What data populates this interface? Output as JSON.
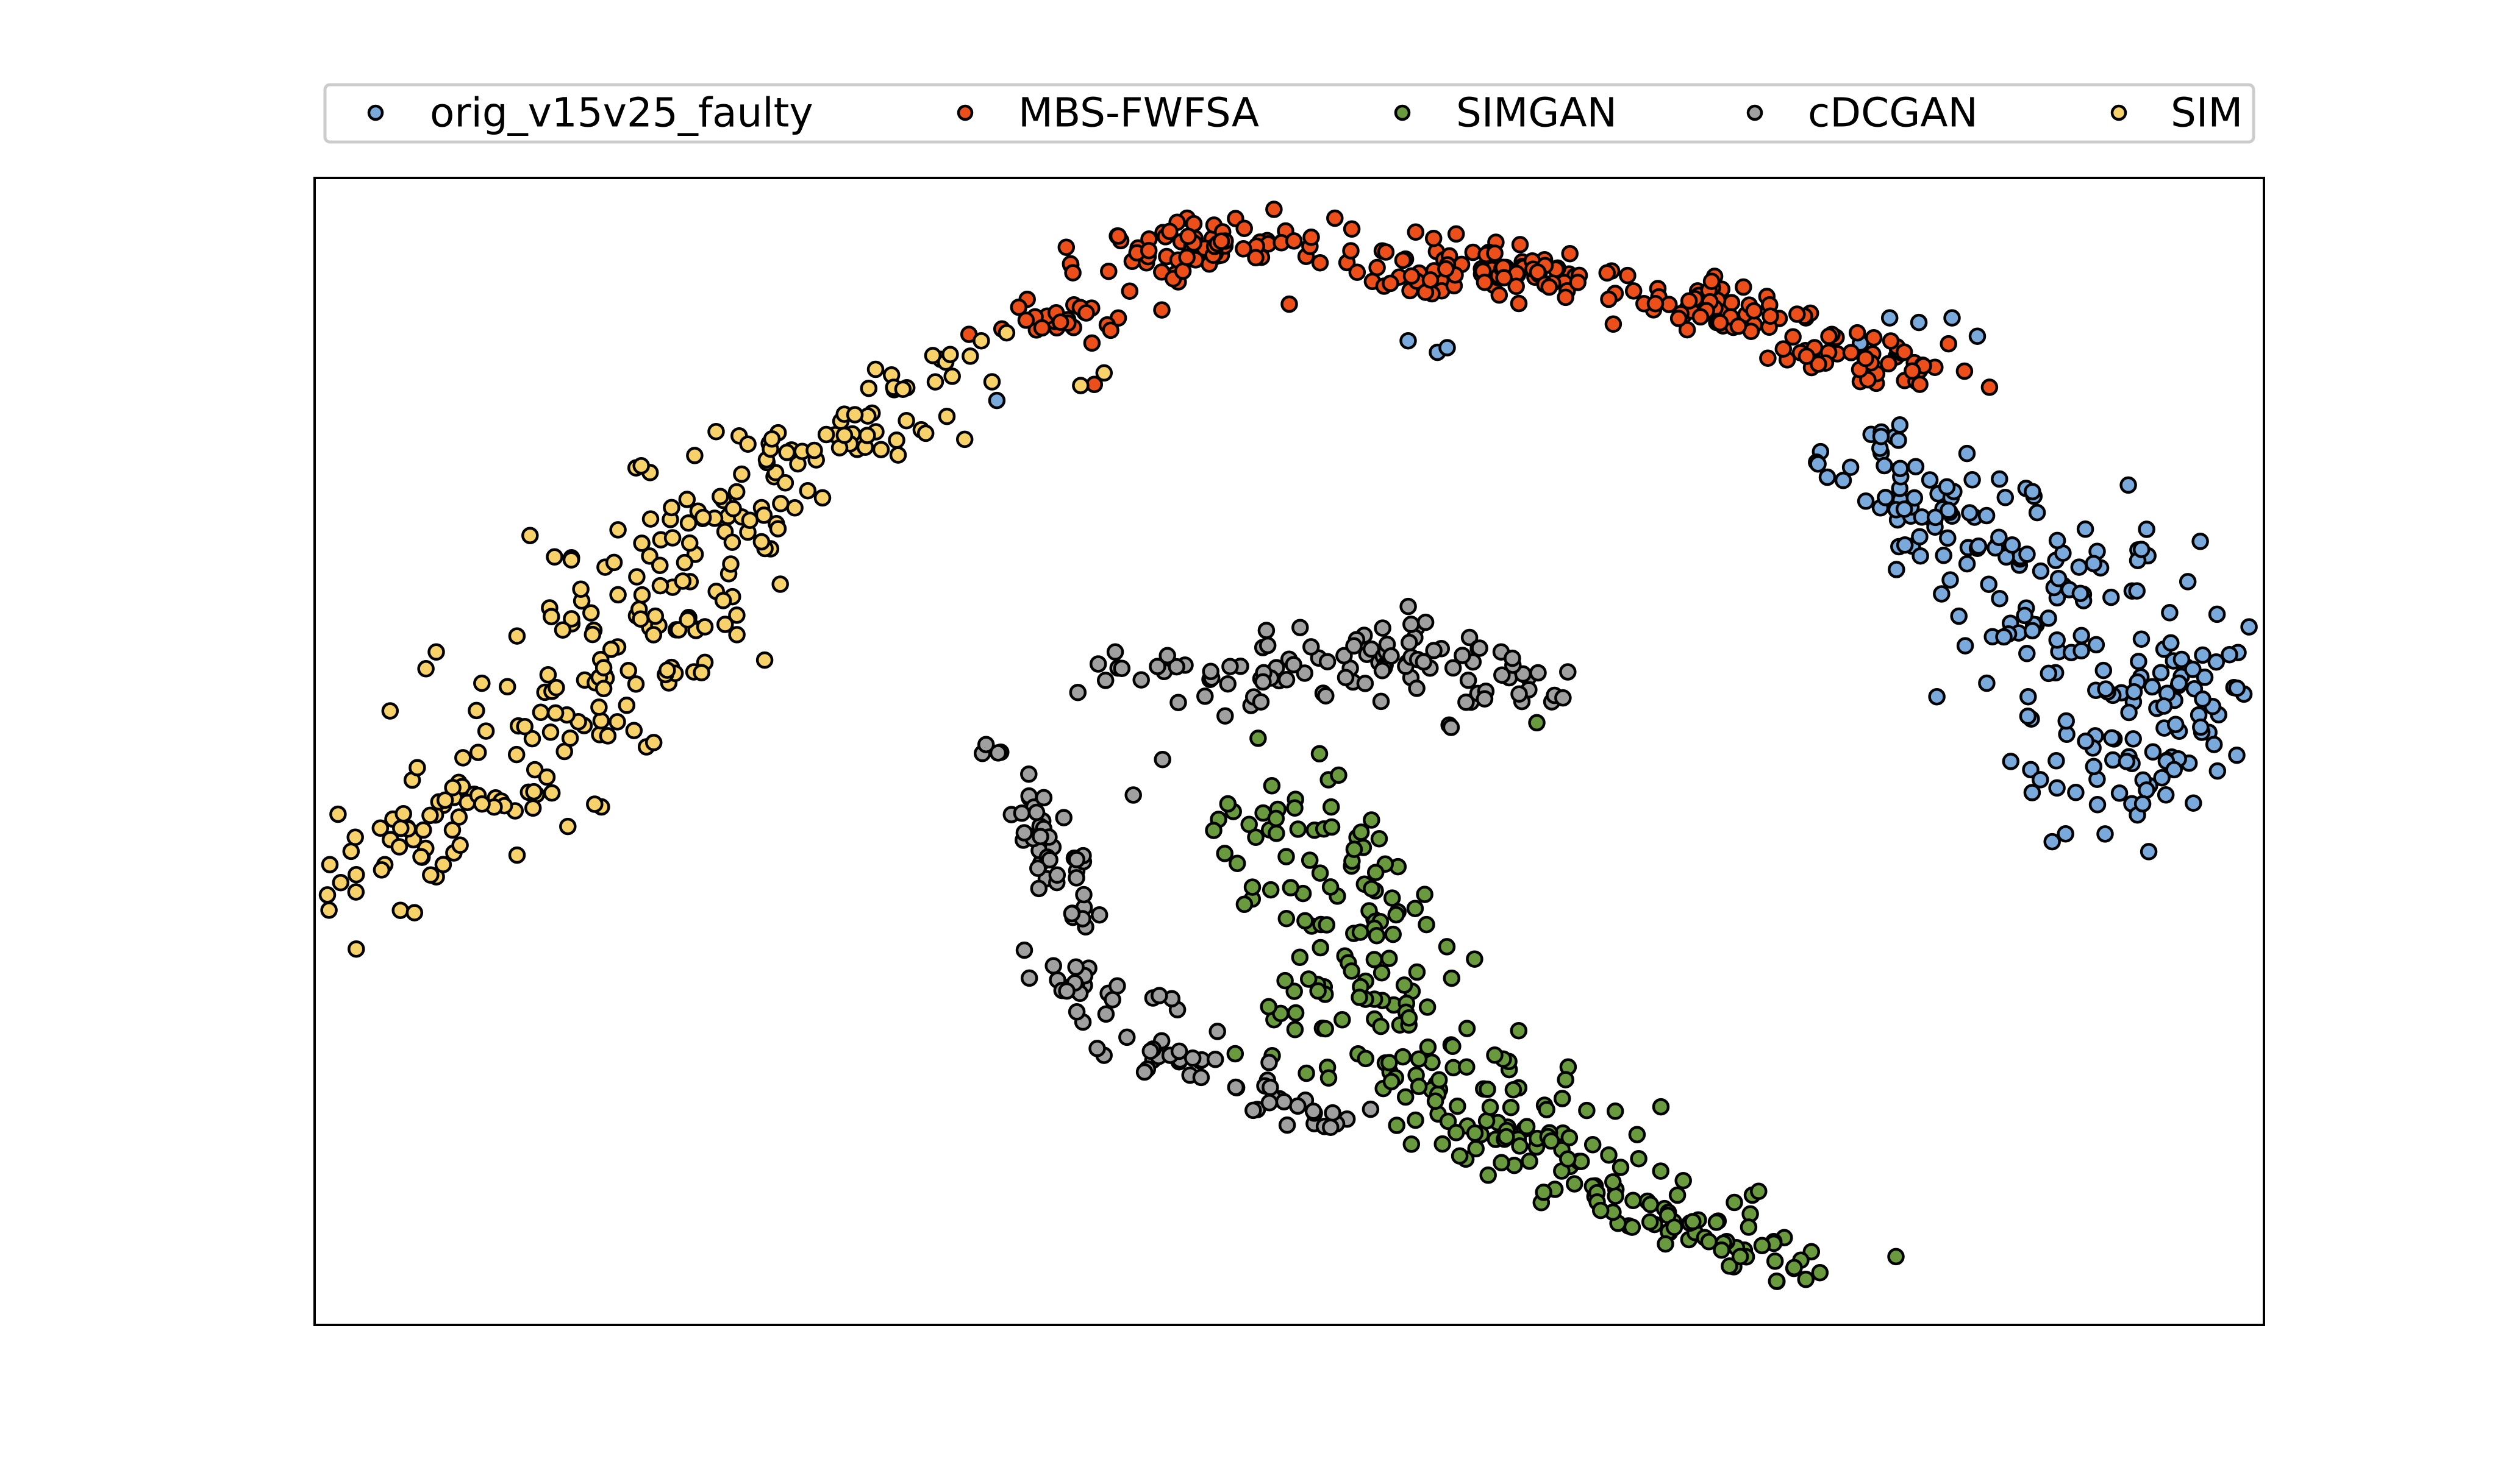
{
  "chart_data": {
    "type": "scatter",
    "title": "",
    "xlabel": "",
    "ylabel": "",
    "xticks": false,
    "yticks": false,
    "xlim": [
      0,
      100
    ],
    "ylim": [
      0,
      100
    ],
    "grid": false,
    "legend": {
      "placement": "top-center, above plot",
      "columns": 5,
      "entries": [
        "orig_v15v25_faulty",
        "MBS-FWFSA",
        "SIMGAN",
        "cDCGAN",
        "SIM"
      ]
    },
    "series": [
      {
        "name": "orig_v15v25_faulty",
        "color": "#7aa9dc",
        "points": [
          [
            80.8,
            87.8
          ],
          [
            82.3,
            87.4
          ],
          [
            84,
            87.8
          ],
          [
            79.3,
            85.6
          ],
          [
            85.3,
            86.2
          ],
          [
            76.5,
            87.8
          ],
          [
            57.6,
            84.8
          ],
          [
            56.1,
            85.8
          ],
          [
            58.1,
            85.2
          ],
          [
            35,
            80.6
          ]
        ],
        "clusters": [
          {
            "center": [
              94.5,
              53.5
            ],
            "spread": [
              3.0,
              6.0
            ],
            "count": 110,
            "angle": -0.5
          },
          {
            "center": [
              89.5,
              63.5
            ],
            "spread": [
              2.5,
              4.5
            ],
            "count": 60,
            "angle": -0.35
          },
          {
            "center": [
              84.0,
              70.5
            ],
            "spread": [
              2.5,
              2.4
            ],
            "count": 50,
            "angle": -0.2
          },
          {
            "center": [
              80.5,
              75.0
            ],
            "spread": [
              1.5,
              2.0
            ],
            "count": 20,
            "angle": 0.0
          }
        ]
      },
      {
        "name": "MBS-FWFSA",
        "color": "#ec4f1a",
        "points": [
          [
            40,
            82
          ],
          [
            50,
            89
          ],
          [
            36.5,
            87.6
          ]
        ],
        "clusters": [
          {
            "center": [
              46.0,
              94.0
            ],
            "spread": [
              3.2,
              1.4
            ],
            "count": 80,
            "angle": 0.15
          },
          {
            "center": [
              60.0,
              92.0
            ],
            "spread": [
              3.5,
              1.3
            ],
            "count": 80,
            "angle": -0.08
          },
          {
            "center": [
              71.5,
              88.8
            ],
            "spread": [
              3.0,
              1.2
            ],
            "count": 60,
            "angle": -0.12
          },
          {
            "center": [
              79.5,
              84.5
            ],
            "spread": [
              3.0,
              1.2
            ],
            "count": 55,
            "angle": -0.25
          },
          {
            "center": [
              38.5,
              87.5
            ],
            "spread": [
              2.2,
              1.0
            ],
            "count": 25,
            "angle": 0.22
          }
        ]
      },
      {
        "name": "SIMGAN",
        "color": "#6a9a3e",
        "points": [
          [
            62.7,
            52.5
          ],
          [
            75.9,
            5.0
          ]
        ],
        "clusters": [
          {
            "center": [
              53.0,
              37.0
            ],
            "spread": [
              8.0,
              2.2
            ],
            "count": 100,
            "angle": -1.2
          },
          {
            "center": [
              58.5,
              21.0
            ],
            "spread": [
              6.5,
              2.5
            ],
            "count": 90,
            "angle": -0.75
          },
          {
            "center": [
              67.5,
              11.5
            ],
            "spread": [
              6.5,
              1.6
            ],
            "count": 70,
            "angle": -0.5
          },
          {
            "center": [
              73.0,
              6.5
            ],
            "spread": [
              2.5,
              0.9
            ],
            "count": 20,
            "angle": -0.45
          }
        ]
      },
      {
        "name": "cDCGAN",
        "color": "#a0a0a0",
        "points": [
          [
            58.2,
            52.3
          ],
          [
            58.3,
            52.1
          ],
          [
            43.5,
            49.3
          ],
          [
            42,
            46.2
          ]
        ],
        "clusters": [
          {
            "center": [
              50.0,
              56.5
            ],
            "spread": [
              4.0,
              1.2
            ],
            "count": 30,
            "angle": 0.18
          },
          {
            "center": [
              55.0,
              58.5
            ],
            "spread": [
              3.0,
              1.8
            ],
            "count": 35,
            "angle": 0.0
          },
          {
            "center": [
              60.5,
              56.5
            ],
            "spread": [
              2.8,
              1.4
            ],
            "count": 30,
            "angle": -0.5
          },
          {
            "center": [
              44.5,
              57.0
            ],
            "spread": [
              2.5,
              0.9
            ],
            "count": 15,
            "angle": 0.12
          },
          {
            "center": [
              37.5,
              42.0
            ],
            "spread": [
              4.5,
              0.9
            ],
            "count": 45,
            "angle": -1.3
          },
          {
            "center": [
              40.0,
              29.0
            ],
            "spread": [
              3.5,
              1.0
            ],
            "count": 30,
            "angle": -0.75
          },
          {
            "center": [
              45.5,
              22.0
            ],
            "spread": [
              4.0,
              1.0
            ],
            "count": 30,
            "angle": -0.45
          },
          {
            "center": [
              50.0,
              18.5
            ],
            "spread": [
              2.0,
              0.7
            ],
            "count": 10,
            "angle": -0.35
          }
        ]
      },
      {
        "name": "SIM",
        "color": "#f7d26a",
        "points": [
          [
            39.3,
            81.9
          ],
          [
            40.5,
            83
          ],
          [
            34.2,
            85.8
          ],
          [
            35.5,
            86.5
          ]
        ],
        "clusters": [
          {
            "center": [
              7.5,
              44.5
            ],
            "spread": [
              5.5,
              2.0
            ],
            "count": 80,
            "angle": 0.78
          },
          {
            "center": [
              15.0,
              58.5
            ],
            "spread": [
              5.0,
              3.0
            ],
            "count": 85,
            "angle": 0.85
          },
          {
            "center": [
              20.5,
              70.5
            ],
            "spread": [
              4.5,
              2.5
            ],
            "count": 60,
            "angle": 0.6
          },
          {
            "center": [
              27.5,
              77.5
            ],
            "spread": [
              3.5,
              1.7
            ],
            "count": 35,
            "angle": 0.5
          },
          {
            "center": [
              31.0,
              82.5
            ],
            "spread": [
              2.2,
              1.0
            ],
            "count": 15,
            "angle": 0.4
          }
        ]
      }
    ]
  }
}
